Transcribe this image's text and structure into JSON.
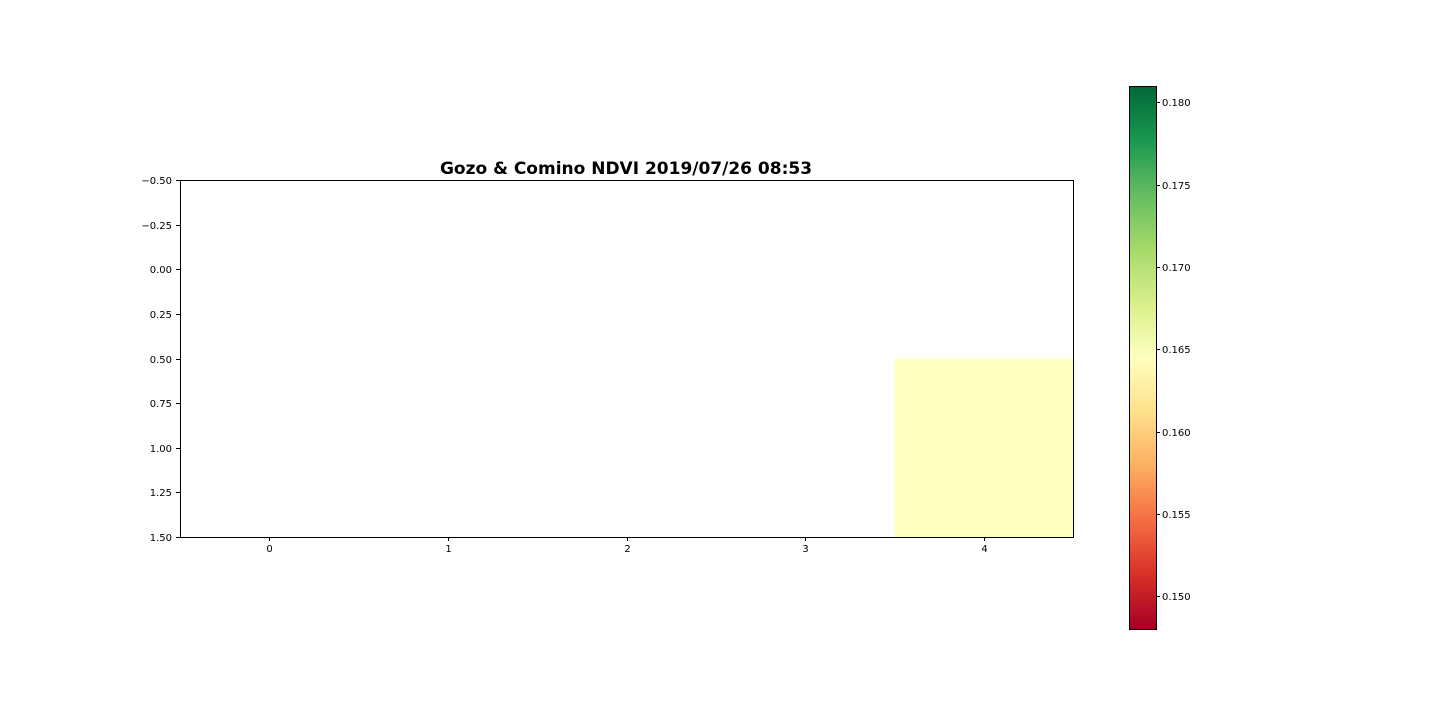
{
  "chart_data": {
    "type": "heatmap",
    "title": "Gozo & Comino NDVI 2019/07/26 08:53",
    "xlabel": "",
    "ylabel": "",
    "x_ticks": [
      0,
      1,
      2,
      3,
      4
    ],
    "x_tick_labels": [
      "0",
      "1",
      "2",
      "3",
      "4"
    ],
    "y_ticks": [
      -0.5,
      -0.25,
      0.0,
      0.25,
      0.5,
      0.75,
      1.0,
      1.25,
      1.5
    ],
    "y_tick_labels": [
      "−0.50",
      "−0.25",
      "0.00",
      "0.25",
      "0.50",
      "0.75",
      "1.00",
      "1.25",
      "1.50"
    ],
    "xlim": [
      -0.5,
      4.5
    ],
    "ylim": [
      1.5,
      -0.5
    ],
    "y_inverted": true,
    "grid": false,
    "cells": [
      {
        "col": 4,
        "row": 1,
        "value": 0.1645
      }
    ],
    "colormap": "RdYlGn",
    "colorbar": {
      "min": 0.148,
      "max": 0.181,
      "ticks": [
        0.15,
        0.155,
        0.16,
        0.165,
        0.17,
        0.175,
        0.18
      ],
      "tick_labels": [
        "0.150",
        "0.155",
        "0.160",
        "0.165",
        "0.170",
        "0.175",
        "0.180"
      ],
      "colors": [
        "#a50026",
        "#d73027",
        "#f46d43",
        "#fdae61",
        "#fee08b",
        "#ffffbf",
        "#d9ef8b",
        "#a6d96a",
        "#66bd63",
        "#1a9850",
        "#006837"
      ]
    }
  }
}
